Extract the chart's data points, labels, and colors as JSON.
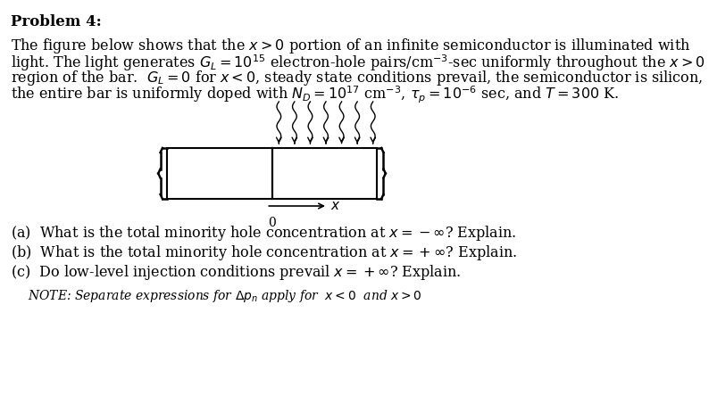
{
  "title": "Problem 4:",
  "paragraph": "The figure below shows that the $x > 0$ portion of an infinite semiconductor is illuminated with\nlight. The light generates $G_L = 10^{15}$ electron-hole pairs/cm$^{-3}$-sec uniformly throughout the $x > 0$\nregion of the bar.  $G_L = 0$ for $x < 0$, steady state conditions prevail, the semiconductor is silicon,\nthe entire bar is uniformly doped with $N_D = 10^{17}$ cm$^{-3}$, $\\tau_p = 10^{-6}$ sec, and $T = 300$ K.",
  "question_a": "(a)  What is the total minority hole concentration at $x = -\\infty$? Explain.",
  "question_b": "(b)  What is the total minority hole concentration at $x = +\\infty$? Explain.",
  "question_c": "(c)  Do low-level injection conditions prevail $x = +\\infty$? Explain.",
  "note": "NOTE: Separate expressions for $\\Delta p_n$ apply for  $x < 0$  and $x > 0$",
  "bg_color": "#ffffff",
  "text_color": "#000000"
}
